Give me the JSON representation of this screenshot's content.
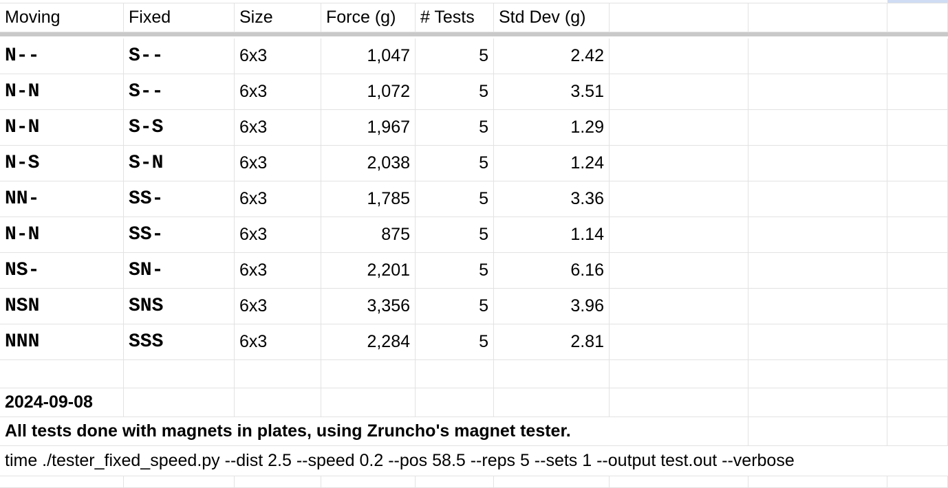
{
  "header": [
    "Moving",
    "Fixed",
    "Size",
    "Force (g)",
    "# Tests",
    "Std Dev (g)"
  ],
  "rows": [
    {
      "moving": "N--",
      "fixed": "S--",
      "size": "6x3",
      "force": "1,047",
      "tests": "5",
      "std": "2.42"
    },
    {
      "moving": "N-N",
      "fixed": "S--",
      "size": "6x3",
      "force": "1,072",
      "tests": "5",
      "std": "3.51"
    },
    {
      "moving": "N-N",
      "fixed": "S-S",
      "size": "6x3",
      "force": "1,967",
      "tests": "5",
      "std": "1.29"
    },
    {
      "moving": "N-S",
      "fixed": "S-N",
      "size": "6x3",
      "force": "2,038",
      "tests": "5",
      "std": "1.24"
    },
    {
      "moving": "NN-",
      "fixed": "SS-",
      "size": "6x3",
      "force": "1,785",
      "tests": "5",
      "std": "3.36"
    },
    {
      "moving": "N-N",
      "fixed": "SS-",
      "size": "6x3",
      "force": "875",
      "tests": "5",
      "std": "1.14"
    },
    {
      "moving": "NS-",
      "fixed": "SN-",
      "size": "6x3",
      "force": "2,201",
      "tests": "5",
      "std": "6.16"
    },
    {
      "moving": "NSN",
      "fixed": "SNS",
      "size": "6x3",
      "force": "3,356",
      "tests": "5",
      "std": "3.96"
    },
    {
      "moving": "NNN",
      "fixed": "SSS",
      "size": "6x3",
      "force": "2,284",
      "tests": "5",
      "std": "2.81"
    }
  ],
  "notes": {
    "date": "2024-09-08",
    "description": "All tests done with magnets in plates, using Zruncho's magnet tester.",
    "command": "time ./tester_fixed_speed.py --dist 2.5 --speed 0.2 --pos 58.5 --reps 5 --sets 1 --output test.out --verbose"
  },
  "colors": {
    "gridline": "#e2e2e2",
    "frozen_bar": "#c9c9c9",
    "selection_accent": "#cfdcf3"
  }
}
